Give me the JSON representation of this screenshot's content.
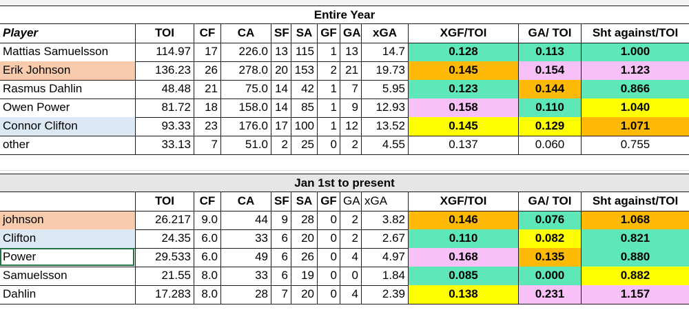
{
  "colors": {
    "teal": "#5ee8b8",
    "orange": "#ffba08",
    "pink": "#f7c1f7",
    "yellow": "#ffff00",
    "peach": "#f8cbad",
    "lightblue": "#dce9f5",
    "gray": "#e6e6e6"
  },
  "section1": {
    "title": "Entire Year",
    "headers": [
      "Player",
      "TOI",
      "CF",
      "CA",
      "SF",
      "SA",
      "GF",
      "GA",
      "xGA",
      "XGF/TOI",
      "GA/ TOI",
      "Sht against/TOI"
    ],
    "rows": [
      {
        "cells": [
          "Mattias Samuelsson",
          "114.97",
          "17",
          "226.0",
          "13",
          "115",
          "1",
          "13",
          "14.7",
          "0.128",
          "0.113",
          "1.000"
        ],
        "name_bg": "",
        "fills": [
          "teal",
          "teal",
          "teal"
        ],
        "bold": true
      },
      {
        "cells": [
          "Erik Johnson",
          "136.23",
          "26",
          "278.0",
          "20",
          "153",
          "2",
          "21",
          "19.73",
          "0.145",
          "0.154",
          "1.123"
        ],
        "name_bg": "peach",
        "fills": [
          "orange",
          "pink",
          "pink"
        ],
        "bold": true
      },
      {
        "cells": [
          "Rasmus Dahlin",
          "48.48",
          "21",
          "75.0",
          "14",
          "42",
          "1",
          "7",
          "5.95",
          "0.123",
          "0.144",
          "0.866"
        ],
        "name_bg": "",
        "fills": [
          "teal",
          "orange",
          "teal"
        ],
        "bold": true
      },
      {
        "cells": [
          "Owen Power",
          "81.72",
          "18",
          "158.0",
          "14",
          "85",
          "1",
          "9",
          "12.93",
          "0.158",
          "0.110",
          "1.040"
        ],
        "name_bg": "",
        "fills": [
          "pink",
          "teal",
          "yellow"
        ],
        "bold": true
      },
      {
        "cells": [
          "Connor Clifton",
          "93.33",
          "23",
          "176.0",
          "17",
          "100",
          "1",
          "12",
          "13.52",
          "0.145",
          "0.129",
          "1.071"
        ],
        "name_bg": "lightblue",
        "fills": [
          "yellow",
          "yellow",
          "orange"
        ],
        "bold": true
      },
      {
        "cells": [
          "other",
          "33.13",
          "7",
          "51.0",
          "2",
          "25",
          "0",
          "2",
          "4.55",
          "0.137",
          "0.060",
          "0.755"
        ],
        "name_bg": "",
        "fills": [
          "",
          "",
          ""
        ],
        "bold": false
      }
    ]
  },
  "section2": {
    "title": "Jan 1st to present",
    "headers": [
      "",
      "TOI",
      "CF",
      "CA",
      "SF",
      "SA",
      "GF",
      "GA",
      "xGA",
      "XGF/TOI",
      "GA/ TOI",
      "Sht against/TOI"
    ],
    "rows": [
      {
        "cells": [
          "johnson",
          "26.217",
          "9.0",
          "44",
          "9",
          "28",
          "0",
          "2",
          "3.82",
          "0.146",
          "0.076",
          "1.068"
        ],
        "name_bg": "peach",
        "fills": [
          "orange",
          "teal",
          "orange"
        ],
        "bold": true
      },
      {
        "cells": [
          "Clifton",
          "24.35",
          "6.0",
          "33",
          "6",
          "20",
          "0",
          "2",
          "2.67",
          "0.110",
          "0.082",
          "0.821"
        ],
        "name_bg": "lightblue",
        "fills": [
          "teal",
          "yellow",
          "teal"
        ],
        "bold": true
      },
      {
        "cells": [
          "Power",
          "29.533",
          "6.0",
          "49",
          "6",
          "26",
          "0",
          "4",
          "4.97",
          "0.168",
          "0.135",
          "0.880"
        ],
        "name_bg": "",
        "fills": [
          "pink",
          "orange",
          "teal"
        ],
        "bold": true
      },
      {
        "cells": [
          "Samuelsson",
          "21.55",
          "8.0",
          "33",
          "6",
          "19",
          "0",
          "0",
          "1.84",
          "0.085",
          "0.000",
          "0.882"
        ],
        "name_bg": "",
        "fills": [
          "teal",
          "teal",
          "yellow"
        ],
        "bold": true
      },
      {
        "cells": [
          "Dahlin",
          "17.283",
          "8.0",
          "28",
          "7",
          "20",
          "0",
          "4",
          "2.39",
          "0.138",
          "0.231",
          "1.157"
        ],
        "name_bg": "",
        "fills": [
          "yellow",
          "pink",
          "pink"
        ],
        "bold": true
      }
    ]
  }
}
